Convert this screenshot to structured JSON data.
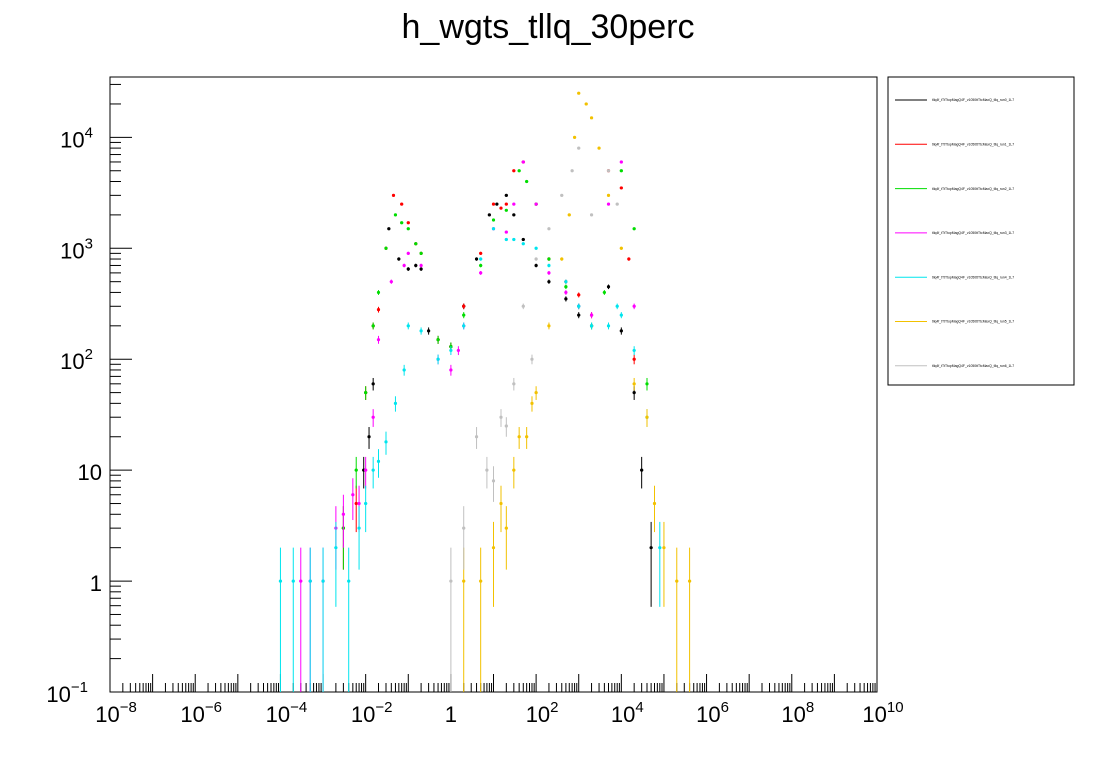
{
  "chart_data": {
    "type": "scatter",
    "title": "h_wgts_tllq_30perc",
    "xlabel": "",
    "ylabel": "",
    "x_scale": "log",
    "y_scale": "log",
    "xlim": [
      1e-08,
      10000000000.0
    ],
    "ylim": [
      0.1,
      35000
    ],
    "grid": false,
    "legend_position": "right",
    "x_ticks": [
      {
        "value": 1e-08,
        "base": "10",
        "exp": "−8"
      },
      {
        "value": 1e-06,
        "base": "10",
        "exp": "−6"
      },
      {
        "value": 0.0001,
        "base": "10",
        "exp": "−4"
      },
      {
        "value": 0.01,
        "base": "10",
        "exp": "−2"
      },
      {
        "value": 1,
        "base": "1",
        "exp": ""
      },
      {
        "value": 100.0,
        "base": "10",
        "exp": "2"
      },
      {
        "value": 10000.0,
        "base": "10",
        "exp": "4"
      },
      {
        "value": 1000000.0,
        "base": "10",
        "exp": "6"
      },
      {
        "value": 100000000.0,
        "base": "10",
        "exp": "8"
      },
      {
        "value": 10000000000.0,
        "base": "10",
        "exp": "10"
      }
    ],
    "y_ticks": [
      {
        "value": 0.1,
        "base": "10",
        "exp": "−1"
      },
      {
        "value": 1,
        "base": "1",
        "exp": ""
      },
      {
        "value": 10,
        "base": "10",
        "exp": ""
      },
      {
        "value": 100,
        "base": "10",
        "exp": "2"
      },
      {
        "value": 1000,
        "base": "10",
        "exp": "3"
      },
      {
        "value": 10000,
        "base": "10",
        "exp": "4"
      }
    ],
    "series": [
      {
        "name": "tllq4f_tTtTtopMagQ4F_v1050ttTtcMaxQ_tllq_run0_1L7",
        "color": "#000000",
        "x": [
          0.009,
          0.012,
          0.015,
          0.035,
          0.06,
          0.1,
          0.15,
          0.2,
          0.3,
          0.5,
          1,
          2,
          4,
          8,
          12,
          20,
          30,
          50,
          100,
          200,
          500,
          1000,
          2000,
          5000,
          10000,
          20000,
          30000,
          50000
        ],
        "y": [
          10,
          20,
          60,
          1500,
          800,
          650,
          700,
          650,
          180,
          150,
          130,
          300,
          800,
          2000,
          2500,
          3000,
          2000,
          1200,
          700,
          500,
          350,
          250,
          200,
          450,
          180,
          50,
          10,
          2
        ]
      },
      {
        "name": "tllq4f_tTtTtopMagQ4F_v1050ttTtcMaxQ_tllq_run1_1L7",
        "color": "#ff0000",
        "x": [
          0.003,
          0.006,
          0.01,
          0.015,
          0.02,
          0.03,
          0.045,
          0.07,
          0.1,
          0.15,
          0.2,
          0.5,
          1,
          2,
          5,
          10,
          15,
          20,
          30,
          50,
          100,
          200,
          500,
          1000,
          2000,
          5000,
          10000,
          15000,
          20000
        ],
        "y": [
          3,
          5,
          50,
          200,
          280,
          1000,
          3000,
          2500,
          1700,
          1100,
          900,
          150,
          130,
          300,
          900,
          2500,
          2300,
          2500,
          5000,
          6000,
          2500,
          800,
          500,
          380,
          250,
          5000,
          3500,
          800,
          100
        ]
      },
      {
        "name": "tllq4f_tTtTtopMagQ4F_v1050ttTtcMaxQ_tllq_run2_1L7",
        "color": "#00dd00",
        "x": [
          0.003,
          0.006,
          0.01,
          0.015,
          0.02,
          0.03,
          0.05,
          0.07,
          0.1,
          0.15,
          0.2,
          0.5,
          1,
          2,
          5,
          10,
          20,
          40,
          60,
          100,
          200,
          500,
          1000,
          2000,
          4000,
          10000,
          20000,
          40000
        ],
        "y": [
          3,
          10,
          50,
          200,
          400,
          1000,
          2000,
          1700,
          1500,
          1100,
          900,
          150,
          130,
          250,
          700,
          1800,
          2200,
          5000,
          4000,
          2500,
          800,
          450,
          300,
          200,
          400,
          5000,
          1500,
          60
        ]
      },
      {
        "name": "tllq4f_tTtTtopMagQ4F_v1050ttTtcMaxQ_tllq_run3_1L7",
        "color": "#ff00ff",
        "x": [
          0.0003,
          0.0005,
          0.001,
          0.002,
          0.003,
          0.005,
          0.007,
          0.01,
          0.015,
          0.02,
          0.04,
          0.08,
          0.1,
          0.2,
          0.5,
          1,
          1.5,
          2,
          5,
          10,
          20,
          30,
          50,
          100,
          200,
          500,
          1000,
          2000,
          5000,
          10000,
          20000
        ],
        "y": [
          1,
          1,
          1,
          3,
          4,
          6,
          5,
          10,
          30,
          150,
          500,
          700,
          900,
          700,
          100,
          80,
          120,
          200,
          600,
          1500,
          1400,
          2500,
          6000,
          2500,
          600,
          400,
          300,
          250,
          2500,
          6000,
          300
        ]
      },
      {
        "name": "tllq4f_tTtTtopMagQ4F_v1050ttTtcMaxQ_tllq_run4_1L7",
        "color": "#00e5ee",
        "x": [
          0.0001,
          0.0002,
          0.0005,
          0.001,
          0.002,
          0.004,
          0.007,
          0.01,
          0.015,
          0.02,
          0.03,
          0.05,
          0.08,
          0.1,
          0.2,
          0.5,
          1,
          2,
          5,
          10,
          20,
          30,
          50,
          100,
          200,
          500,
          1000,
          2000,
          5000,
          8000,
          10000,
          20000,
          40000,
          80000
        ],
        "y": [
          1,
          1,
          1,
          1,
          2,
          1,
          3,
          5,
          10,
          12,
          18,
          40,
          80,
          200,
          180,
          100,
          120,
          200,
          800,
          1500,
          1200,
          1200,
          1100,
          1000,
          700,
          500,
          300,
          200,
          200,
          300,
          250,
          120,
          30,
          2
        ]
      },
      {
        "name": "tllq4f_tTtTtopMagQ4F_v1050ttTtcMaxQ_tllq_run5_1L7",
        "color": "#f2c100",
        "x": [
          2,
          5,
          10,
          15,
          20,
          30,
          40,
          60,
          80,
          100,
          200,
          400,
          600,
          800,
          1000,
          1500,
          2000,
          3000,
          5000,
          10000,
          20000,
          40000,
          60000,
          100000,
          200000,
          400000
        ],
        "y": [
          1,
          1,
          2,
          5,
          3,
          10,
          20,
          20,
          40,
          50,
          200,
          800,
          2000,
          10000,
          25000,
          20000,
          15000,
          8000,
          3000,
          1000,
          60,
          30,
          5,
          2,
          1,
          1
        ]
      },
      {
        "name": "tllq4f_tTtTtopMagQ4F_v1050ttTtcMaxQ_tllq_run6_1L7",
        "color": "#c0c0c0",
        "x": [
          1,
          2,
          4,
          7,
          10,
          15,
          20,
          30,
          50,
          80,
          100,
          200,
          400,
          700,
          1000,
          2000,
          5000,
          8000
        ],
        "y": [
          1,
          3,
          20,
          10,
          8,
          30,
          25,
          60,
          300,
          100,
          800,
          1500,
          3000,
          5000,
          8000,
          2000,
          5000,
          2500
        ]
      }
    ]
  }
}
